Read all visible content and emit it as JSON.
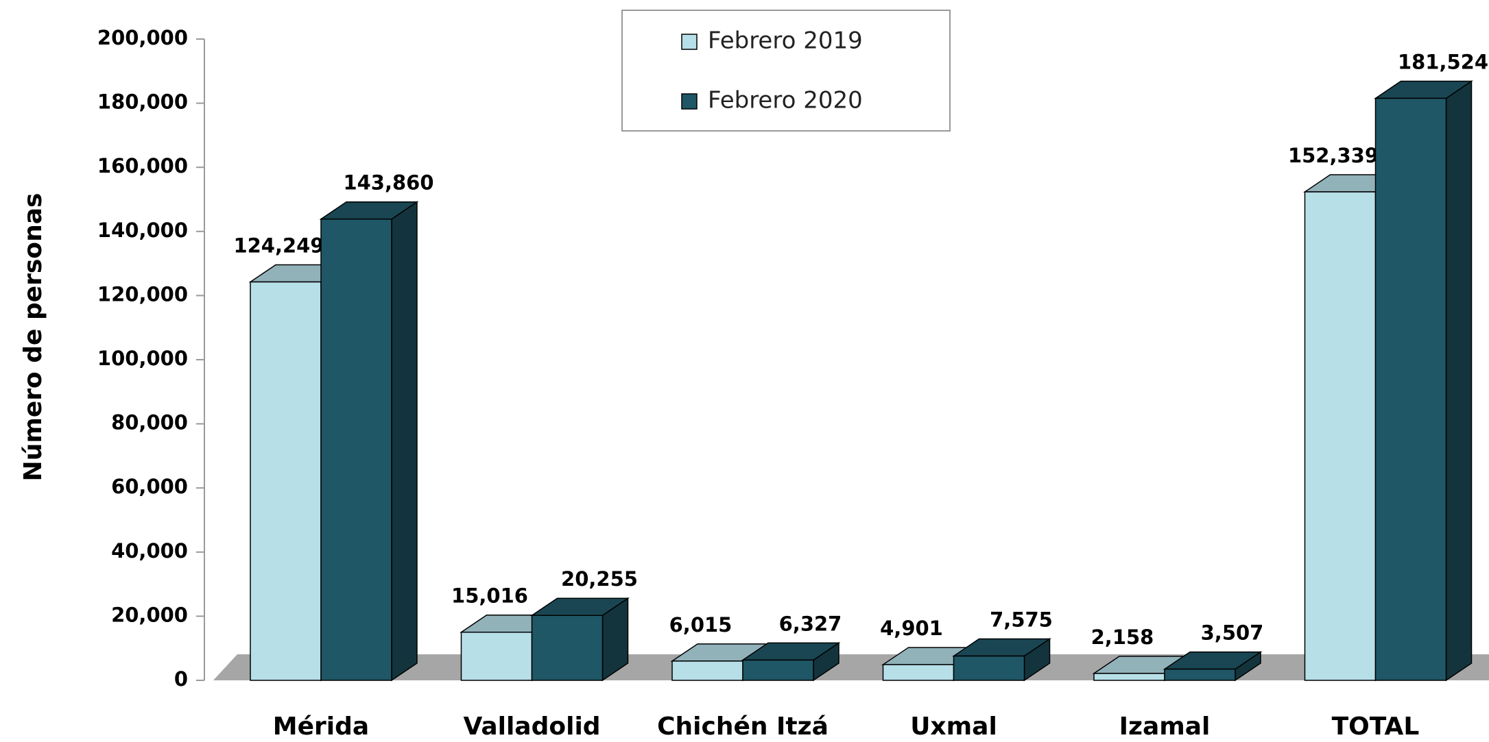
{
  "chart_data": {
    "type": "bar3d",
    "y_label": "Número de personas",
    "categories": [
      "Mérida",
      "Valladolid",
      "Chichén Itzá",
      "Uxmal",
      "Izamal",
      "TOTAL"
    ],
    "series": [
      {
        "name": "Febrero 2019",
        "color": "#b7dfe8",
        "values": [
          124249,
          15016,
          6015,
          4901,
          2158,
          152339
        ],
        "value_labels": [
          "124,249",
          "15,016",
          "6,015",
          "4,901",
          "2,158",
          "152,339"
        ]
      },
      {
        "name": "Febrero 2020",
        "color": "#1f5766",
        "values": [
          143860,
          20255,
          6327,
          7575,
          3507,
          181524
        ],
        "value_labels": [
          "143,860",
          "20,255",
          "6,327",
          "7,575",
          "3,507",
          "181,524"
        ]
      }
    ],
    "ylim": [
      0,
      200000
    ],
    "yticks": [
      {
        "value": 0,
        "label": "0"
      },
      {
        "value": 20000,
        "label": "20,000"
      },
      {
        "value": 40000,
        "label": "40,000"
      },
      {
        "value": 60000,
        "label": "60,000"
      },
      {
        "value": 80000,
        "label": "80,000"
      },
      {
        "value": 100000,
        "label": "100,000"
      },
      {
        "value": 120000,
        "label": "120,000"
      },
      {
        "value": 140000,
        "label": "140,000"
      },
      {
        "value": 160000,
        "label": "160,000"
      },
      {
        "value": 180000,
        "label": "180,000"
      },
      {
        "value": 200000,
        "label": "200,000"
      }
    ],
    "legend": "top"
  }
}
